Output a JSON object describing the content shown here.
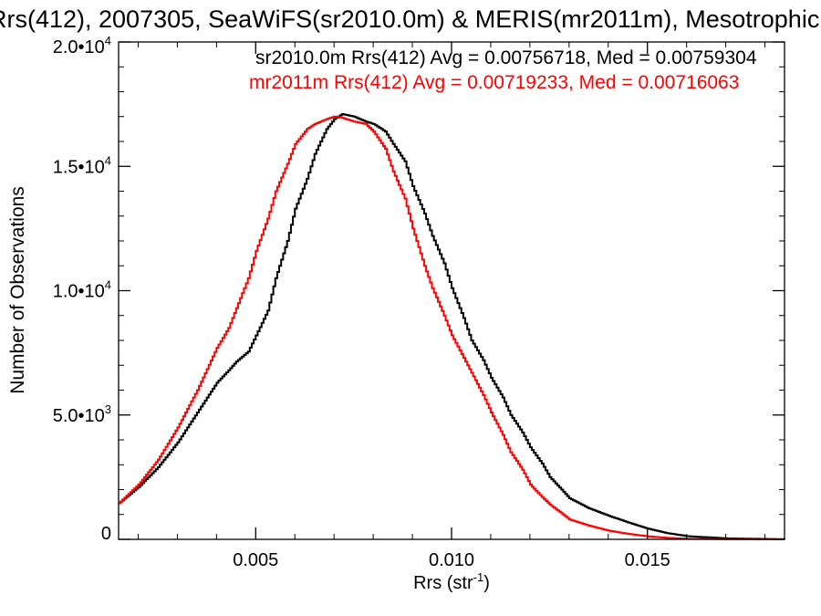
{
  "chart_data": {
    "type": "line",
    "title": "Rrs(412), 2007305, SeaWiFS(sr2010.0m) & MERIS(mr2011m), Mesotrophic",
    "xlabel_main": "Rrs (str",
    "xlabel_sup": "-1",
    "xlabel_close": ")",
    "ylabel": "Number of Observations",
    "xlim": [
      0.0015,
      0.0185
    ],
    "ylim": [
      0,
      20000
    ],
    "x_ticks": [
      {
        "value": 0.005,
        "label": "0.005"
      },
      {
        "value": 0.01,
        "label": "0.010"
      },
      {
        "value": 0.015,
        "label": "0.015"
      }
    ],
    "y_ticks": [
      {
        "value": 0,
        "mant": "0",
        "exp": ""
      },
      {
        "value": 5000,
        "mant": "5.0•10",
        "exp": "3"
      },
      {
        "value": 10000,
        "mant": "1.0•10",
        "exp": "4"
      },
      {
        "value": 15000,
        "mant": "1.5•10",
        "exp": "4"
      },
      {
        "value": 20000,
        "mant": "2.0•10",
        "exp": "4"
      }
    ],
    "legend_placement": "top-right",
    "series": [
      {
        "name": "sr2010.0m",
        "legend": "sr2010.0m Rrs(412) Avg = 0.00756718, Med = 0.00759304",
        "color": "#000000",
        "x": [
          0.0015,
          0.002,
          0.0025,
          0.003,
          0.0035,
          0.004,
          0.0043,
          0.0045,
          0.0048,
          0.005,
          0.0053,
          0.0055,
          0.0058,
          0.006,
          0.0063,
          0.0065,
          0.0068,
          0.007,
          0.0072,
          0.0075,
          0.0078,
          0.008,
          0.0083,
          0.0085,
          0.0088,
          0.009,
          0.0093,
          0.0095,
          0.0098,
          0.01,
          0.0103,
          0.0105,
          0.0108,
          0.011,
          0.0113,
          0.0115,
          0.0118,
          0.012,
          0.0123,
          0.0125,
          0.0128,
          0.013,
          0.0135,
          0.014,
          0.0145,
          0.015,
          0.0155,
          0.016,
          0.017,
          0.0185
        ],
        "y": [
          1450,
          2100,
          2900,
          3900,
          5100,
          6300,
          6800,
          7150,
          7550,
          8200,
          9200,
          10500,
          12000,
          13300,
          14500,
          15500,
          16500,
          16900,
          17100,
          17000,
          16800,
          16700,
          16400,
          15900,
          15200,
          14200,
          13100,
          12200,
          11100,
          10100,
          8900,
          8000,
          7200,
          6500,
          5700,
          5000,
          4300,
          3700,
          3050,
          2500,
          2000,
          1650,
          1250,
          950,
          680,
          430,
          250,
          130,
          40,
          5
        ]
      },
      {
        "name": "mr2011m",
        "legend": "mr2011m Rrs(412) Avg = 0.00719233, Med = 0.00716063",
        "color": "#ff0000",
        "x": [
          0.0015,
          0.002,
          0.0025,
          0.003,
          0.0035,
          0.004,
          0.0043,
          0.0045,
          0.0048,
          0.005,
          0.0053,
          0.0055,
          0.0058,
          0.006,
          0.0063,
          0.0065,
          0.0068,
          0.007,
          0.0072,
          0.0075,
          0.0078,
          0.008,
          0.0083,
          0.0085,
          0.0088,
          0.009,
          0.0093,
          0.0095,
          0.0098,
          0.01,
          0.0103,
          0.0105,
          0.0108,
          0.011,
          0.0113,
          0.0115,
          0.0118,
          0.012,
          0.0123,
          0.0125,
          0.0128,
          0.013,
          0.0135,
          0.014,
          0.0145,
          0.015,
          0.0155,
          0.016,
          0.017,
          0.0185
        ],
        "y": [
          1450,
          2200,
          3200,
          4500,
          6000,
          7700,
          8500,
          9300,
          10500,
          11600,
          12900,
          14000,
          15100,
          15900,
          16500,
          16700,
          16900,
          17000,
          16950,
          16800,
          16700,
          16400,
          15700,
          14800,
          13700,
          12500,
          11000,
          10100,
          9000,
          8200,
          7300,
          6700,
          5800,
          5100,
          4200,
          3500,
          2800,
          2200,
          1700,
          1400,
          1050,
          800,
          550,
          350,
          220,
          120,
          60,
          25,
          5,
          0
        ]
      }
    ]
  }
}
